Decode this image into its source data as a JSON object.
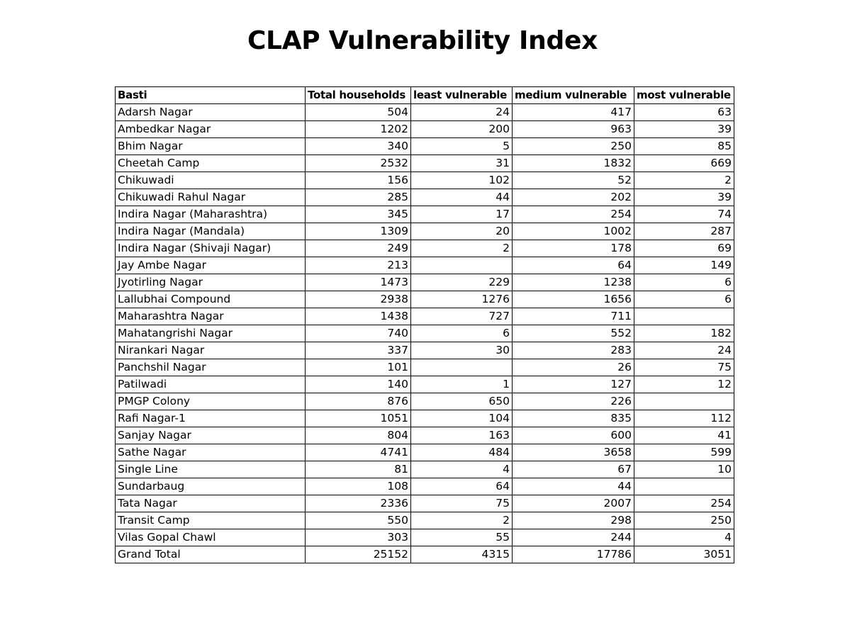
{
  "title": "CLAP Vulnerability Index",
  "table": {
    "headers": [
      "Basti",
      "Total households",
      "least vulnerable",
      "medium vulnerable",
      "most vulnerable"
    ],
    "rows": [
      [
        "Adarsh Nagar",
        "504",
        "24",
        "417",
        "63"
      ],
      [
        "Ambedkar Nagar",
        "1202",
        "200",
        "963",
        "39"
      ],
      [
        "Bhim Nagar",
        "340",
        "5",
        "250",
        "85"
      ],
      [
        "Cheetah Camp",
        "2532",
        "31",
        "1832",
        "669"
      ],
      [
        "Chikuwadi",
        "156",
        "102",
        "52",
        "2"
      ],
      [
        "Chikuwadi Rahul Nagar",
        "285",
        "44",
        "202",
        "39"
      ],
      [
        "Indira Nagar (Maharashtra)",
        "345",
        "17",
        "254",
        "74"
      ],
      [
        "Indira Nagar (Mandala)",
        "1309",
        "20",
        "1002",
        "287"
      ],
      [
        "Indira Nagar (Shivaji Nagar)",
        "249",
        "2",
        "178",
        "69"
      ],
      [
        "Jay Ambe Nagar",
        "213",
        "",
        "64",
        "149"
      ],
      [
        "Jyotirling Nagar",
        "1473",
        "229",
        "1238",
        "6"
      ],
      [
        "Lallubhai Compound",
        "2938",
        "1276",
        "1656",
        "6"
      ],
      [
        "Maharashtra Nagar",
        "1438",
        "727",
        "711",
        ""
      ],
      [
        "Mahatangrishi Nagar",
        "740",
        "6",
        "552",
        "182"
      ],
      [
        "Nirankari Nagar",
        "337",
        "30",
        "283",
        "24"
      ],
      [
        "Panchshil Nagar",
        "101",
        "",
        "26",
        "75"
      ],
      [
        "Patilwadi",
        "140",
        "1",
        "127",
        "12"
      ],
      [
        "PMGP Colony",
        "876",
        "650",
        "226",
        ""
      ],
      [
        "Rafi Nagar-1",
        "1051",
        "104",
        "835",
        "112"
      ],
      [
        "Sanjay Nagar",
        "804",
        "163",
        "600",
        "41"
      ],
      [
        "Sathe Nagar",
        "4741",
        "484",
        "3658",
        "599"
      ],
      [
        "Single Line",
        "81",
        "4",
        "67",
        "10"
      ],
      [
        "Sundarbaug",
        "108",
        "64",
        "44",
        ""
      ],
      [
        "Tata Nagar",
        "2336",
        "75",
        "2007",
        "254"
      ],
      [
        "Transit Camp",
        "550",
        "2",
        "298",
        "250"
      ],
      [
        "Vilas Gopal Chawl",
        "303",
        "55",
        "244",
        "4"
      ],
      [
        "Grand Total",
        "25152",
        "4315",
        "17786",
        "3051"
      ]
    ]
  }
}
